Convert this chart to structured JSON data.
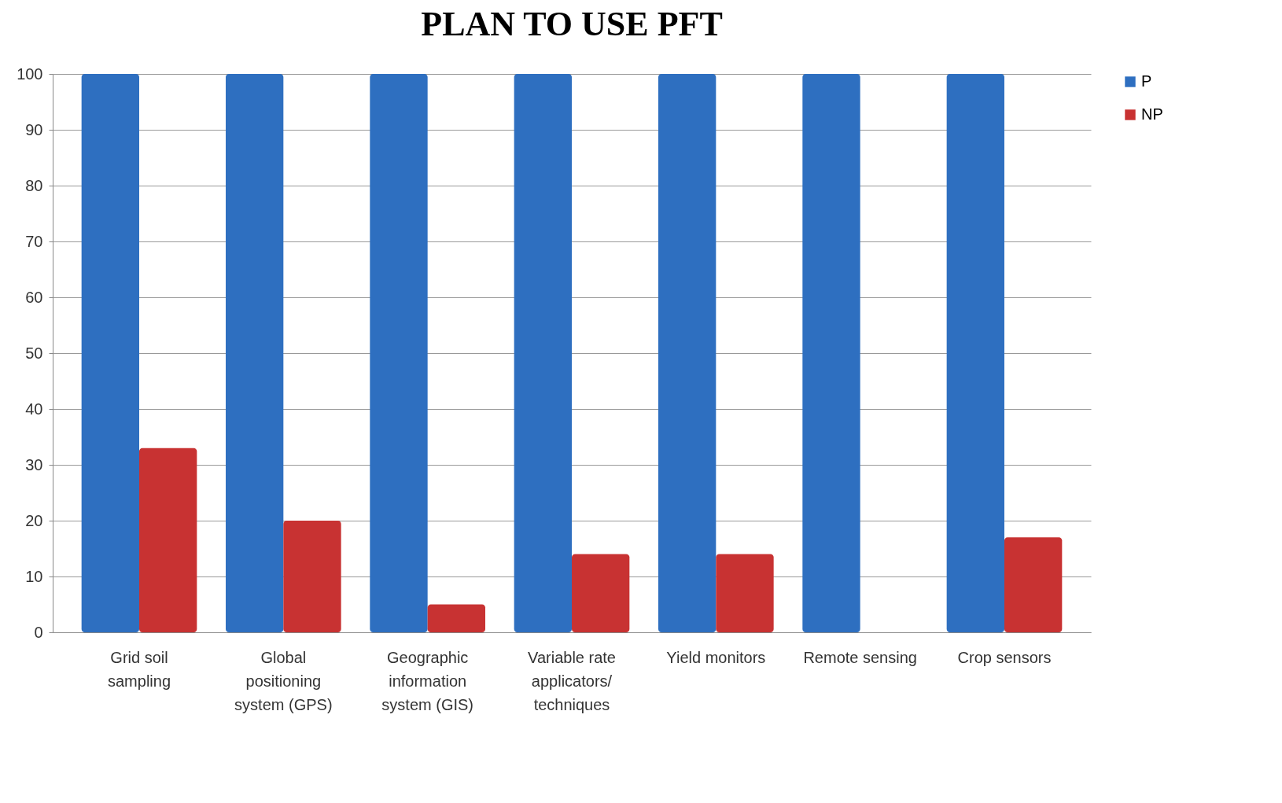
{
  "chart_data": {
    "type": "bar",
    "title": "PLAN TO USE PFT",
    "categories": [
      "Grid soil sampling",
      "Global positioning system (GPS)",
      "Geographic information system (GIS)",
      "Variable rate applicators/techniques",
      "Yield monitors",
      "Remote sensing",
      "Crop sensors"
    ],
    "series": [
      {
        "name": "P",
        "color": "#2e6fc0",
        "values": [
          100,
          100,
          100,
          100,
          100,
          100,
          100
        ]
      },
      {
        "name": "NP",
        "color": "#c83232",
        "values": [
          33,
          20,
          5,
          14,
          14,
          0,
          17
        ]
      }
    ],
    "ylim": [
      0,
      100
    ],
    "yticks": [
      0,
      10,
      20,
      30,
      40,
      50,
      60,
      70,
      80,
      90,
      100
    ],
    "grid": "y",
    "legend": "right"
  }
}
